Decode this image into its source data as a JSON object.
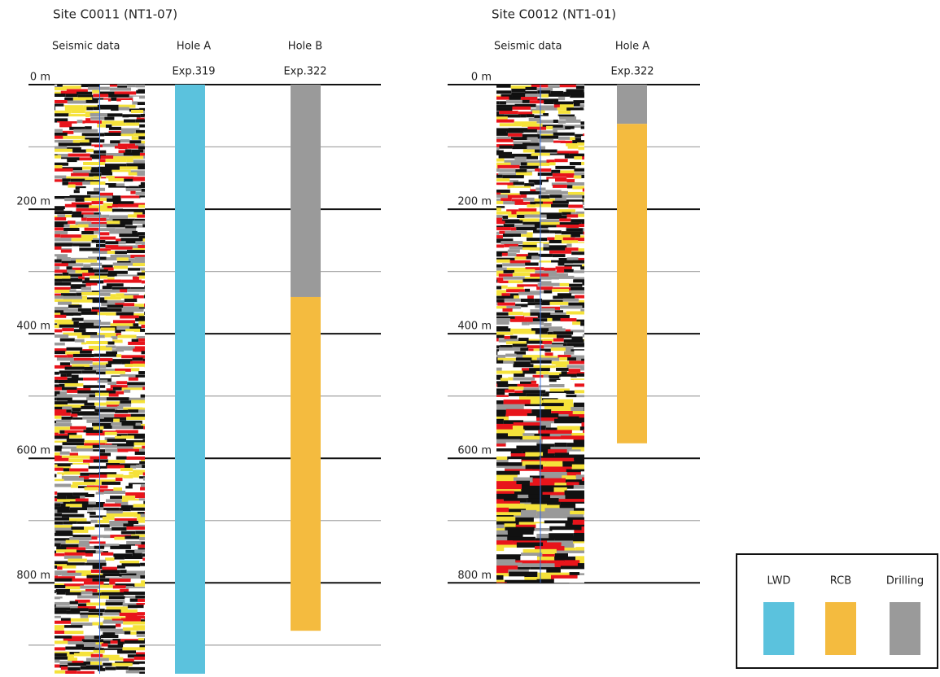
{
  "sites": [
    {
      "title": "Site C0011 (NT1-07)",
      "seismic_label": "Seismic data",
      "seismic_range": [
        0,
        946
      ],
      "depth_ticks": [
        {
          "value": 0,
          "label": "0 m"
        },
        {
          "value": 200,
          "label": "200 m"
        },
        {
          "value": 400,
          "label": "400 m"
        },
        {
          "value": 600,
          "label": "600 m"
        },
        {
          "value": 800,
          "label": "800 m"
        }
      ],
      "grid_lines": [
        0,
        100,
        200,
        300,
        400,
        500,
        600,
        700,
        800,
        900
      ],
      "holes": [
        {
          "name": "Hole A",
          "expedition": "Exp.319",
          "intervals": [
            {
              "type": "LWD",
              "top": 0,
              "bottom": 946
            }
          ]
        },
        {
          "name": "Hole B",
          "expedition": "Exp.322",
          "intervals": [
            {
              "type": "Drilling",
              "top": 0,
              "bottom": 341
            },
            {
              "type": "RCB",
              "top": 341,
              "bottom": 877
            }
          ]
        }
      ]
    },
    {
      "title": "Site C0012 (NT1-01)",
      "seismic_label": "Seismic data",
      "seismic_range": [
        0,
        800
      ],
      "depth_ticks": [
        {
          "value": 0,
          "label": "0 m"
        },
        {
          "value": 200,
          "label": "200 m"
        },
        {
          "value": 400,
          "label": "400 m"
        },
        {
          "value": 600,
          "label": "600 m"
        },
        {
          "value": 800,
          "label": "800 m"
        }
      ],
      "grid_lines": [
        0,
        100,
        200,
        300,
        400,
        500,
        600,
        700,
        800
      ],
      "holes": [
        {
          "name": "Hole A",
          "expedition": "Exp.322",
          "intervals": [
            {
              "type": "Drilling",
              "top": 0,
              "bottom": 63
            },
            {
              "type": "RCB",
              "top": 63,
              "bottom": 576
            }
          ]
        }
      ]
    }
  ],
  "depth_range": [
    0,
    946
  ],
  "legend": [
    {
      "label": "LWD",
      "color": "#5bc2dd"
    },
    {
      "label": "RCB",
      "color": "#f4bb3f"
    },
    {
      "label": "Drilling",
      "color": "#9a9a9a"
    }
  ]
}
